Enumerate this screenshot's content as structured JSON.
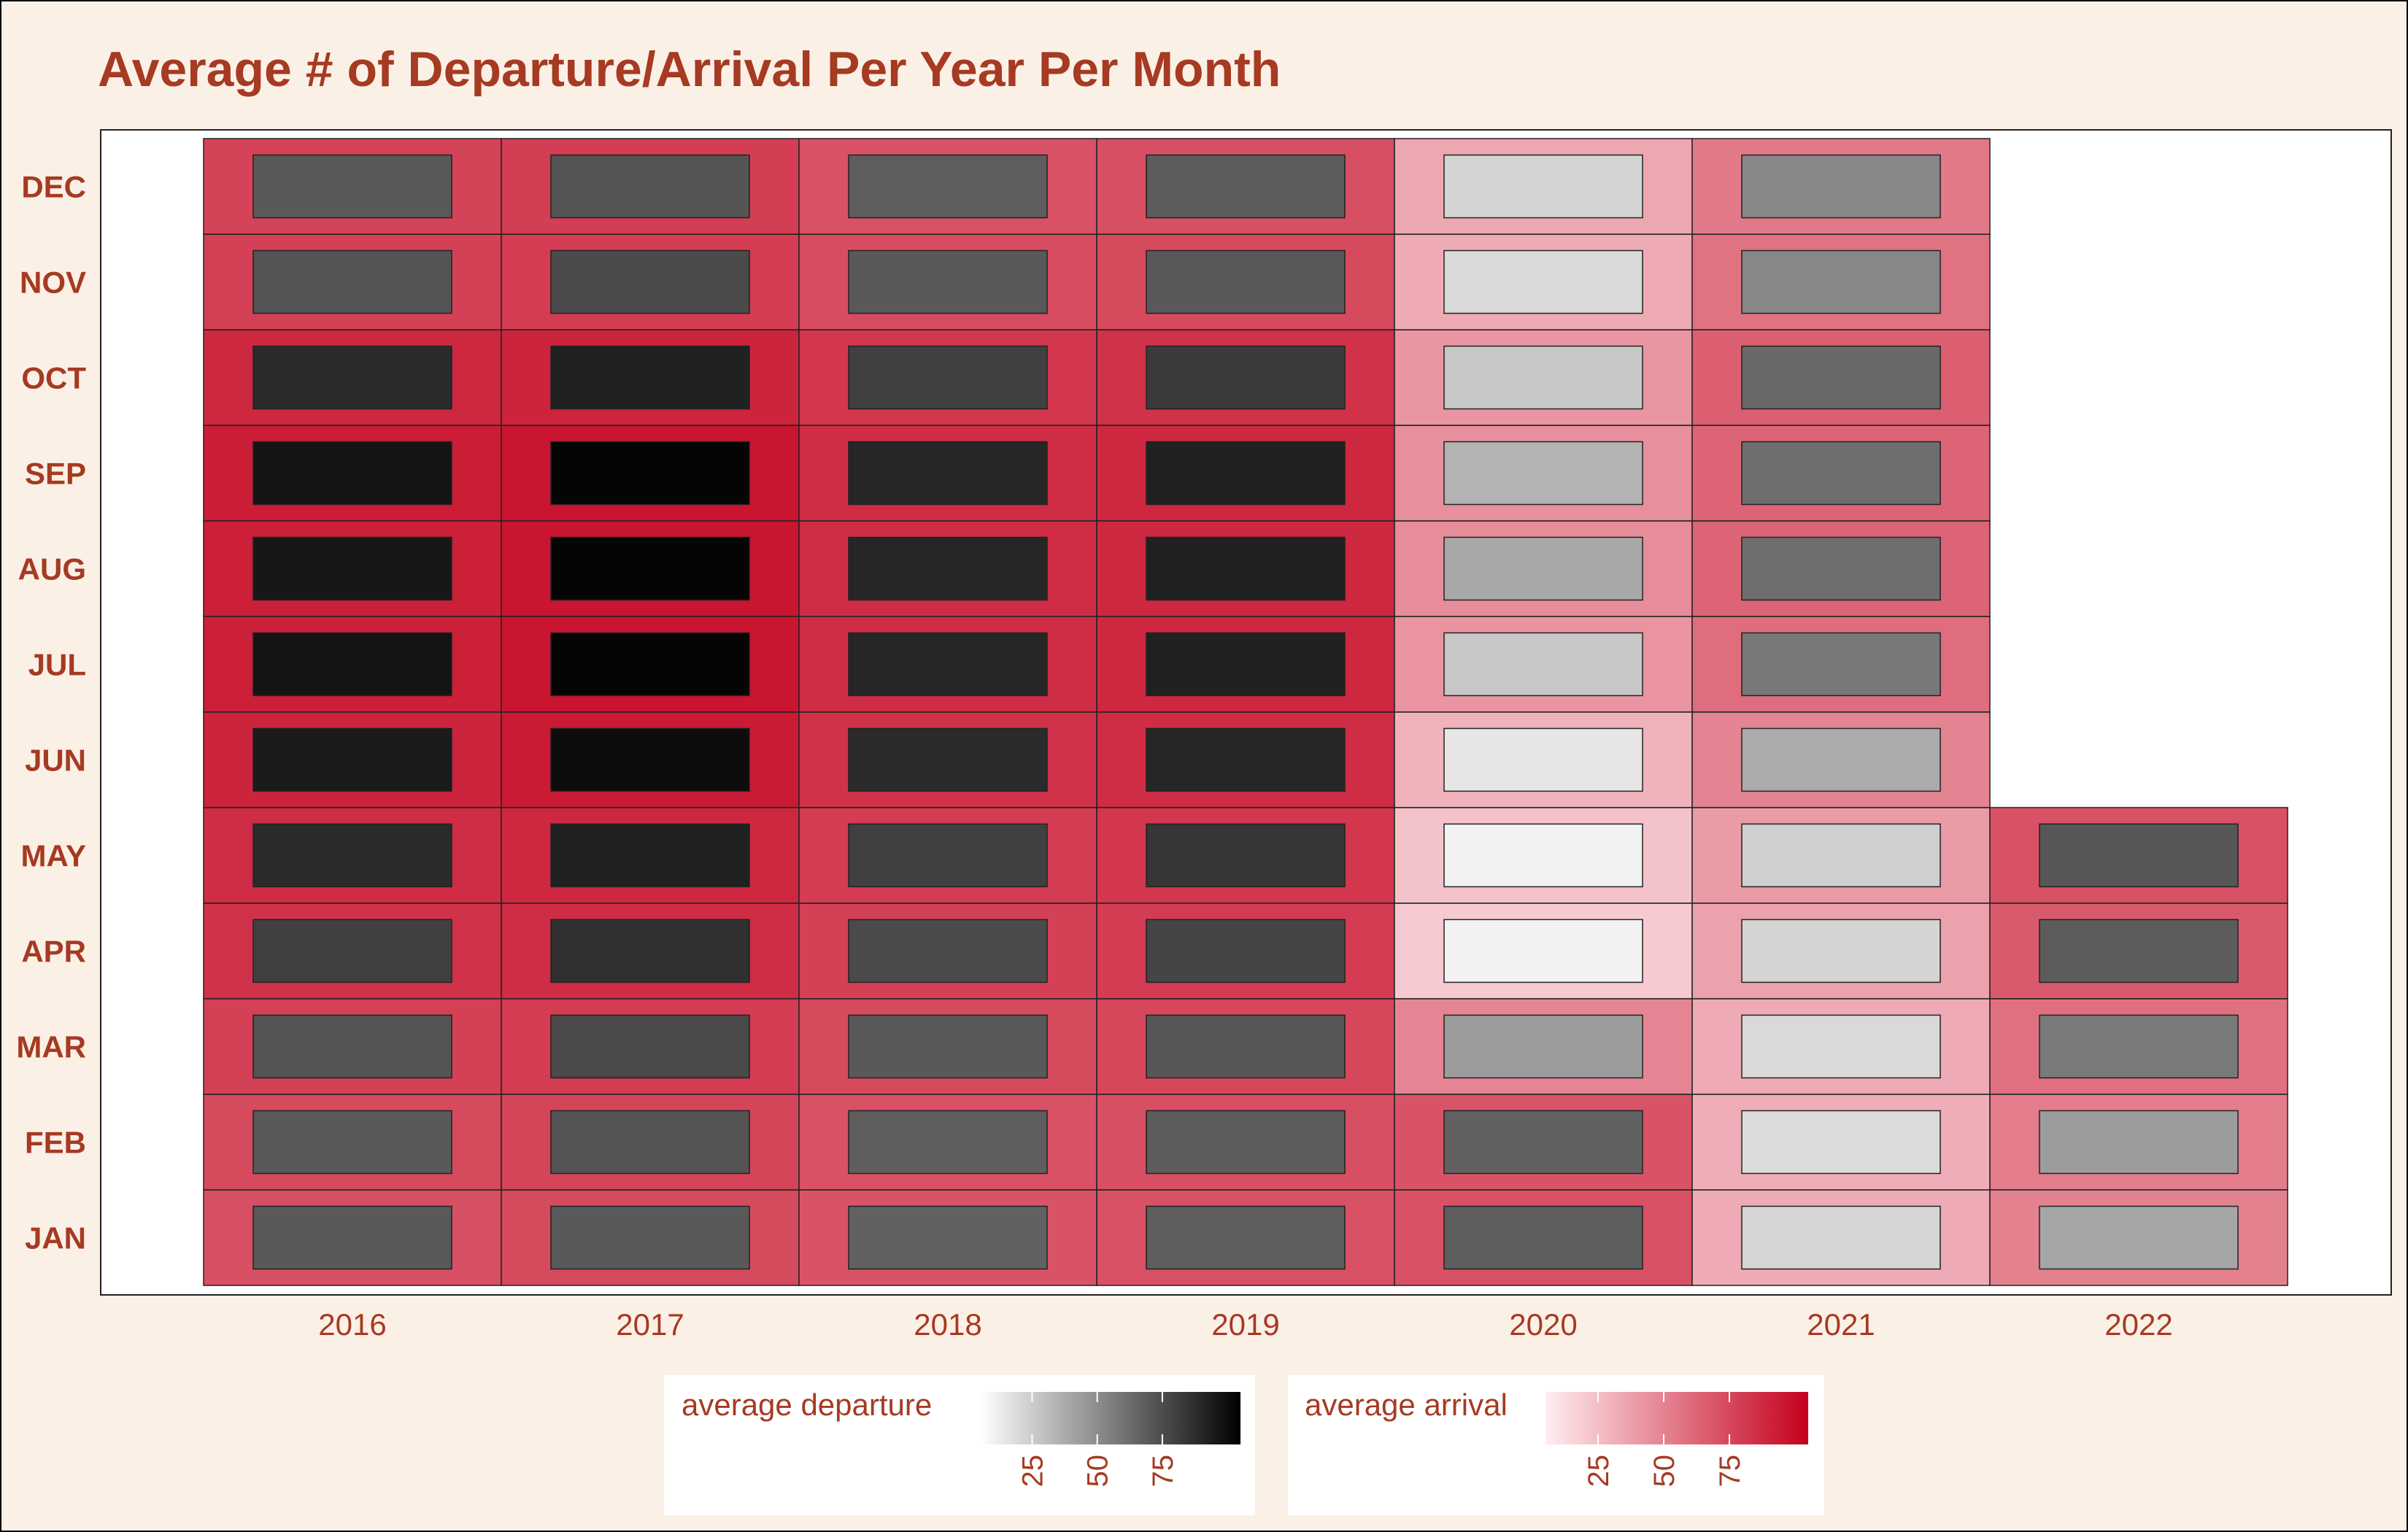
{
  "chart_data": {
    "type": "heatmap",
    "title": "Average # of Departure/Arrival Per Year Per Month",
    "years": [
      "2016",
      "2017",
      "2018",
      "2019",
      "2020",
      "2021",
      "2022"
    ],
    "months": [
      "JAN",
      "FEB",
      "MAR",
      "APR",
      "MAY",
      "JUN",
      "JUL",
      "AUG",
      "SEP",
      "OCT",
      "NOV",
      "DEC"
    ],
    "series": [
      {
        "name": "average departure",
        "encoding": "inner rectangle fill (white to black)",
        "values": {
          "2016": [
            70,
            70,
            72,
            80,
            88,
            95,
            97,
            96,
            97,
            88,
            72,
            70
          ],
          "2017": [
            70,
            72,
            76,
            86,
            92,
            100,
            103,
            103,
            103,
            92,
            76,
            72
          ],
          "2018": [
            67,
            68,
            70,
            76,
            80,
            88,
            90,
            90,
            90,
            80,
            70,
            68
          ],
          "2019": [
            68,
            69,
            71,
            78,
            84,
            90,
            92,
            92,
            92,
            82,
            70,
            69
          ],
          "2020": [
            68,
            67,
            44,
            10,
            10,
            15,
            27,
            39,
            35,
            27,
            20,
            22
          ],
          "2021": [
            21,
            19,
            20,
            22,
            24,
            38,
            58,
            62,
            62,
            64,
            52,
            52
          ],
          "2022": [
            40,
            44,
            57,
            69,
            71,
            null,
            null,
            null,
            null,
            null,
            null,
            null
          ]
        }
      },
      {
        "name": "average arrival",
        "encoding": "outer tile fill (white to red)",
        "values": {
          "2016": [
            72,
            74,
            78,
            84,
            86,
            90,
            92,
            92,
            93,
            88,
            78,
            77
          ],
          "2017": [
            74,
            76,
            80,
            86,
            88,
            94,
            96,
            96,
            96,
            90,
            80,
            79
          ],
          "2018": [
            70,
            71,
            74,
            78,
            80,
            84,
            86,
            86,
            86,
            82,
            73,
            71
          ],
          "2019": [
            71,
            72,
            75,
            80,
            82,
            86,
            88,
            88,
            88,
            84,
            74,
            72
          ],
          "2020": [
            71,
            70,
            49,
            20,
            23,
            30,
            43,
            46,
            45,
            42,
            33,
            35
          ],
          "2021": [
            33,
            32,
            33,
            37,
            40,
            50,
            59,
            63,
            63,
            65,
            57,
            54
          ],
          "2022": [
            51,
            53,
            58,
            67,
            71,
            null,
            null,
            null,
            null,
            null,
            null,
            null
          ]
        }
      }
    ],
    "legend": {
      "placement": "bottom",
      "items": [
        {
          "title": "average departure",
          "low_color": "#ffffff",
          "high_color": "#000000",
          "ticks": [
            "25",
            "50",
            "75"
          ]
        },
        {
          "title": "average arrival",
          "low_color": "#ffeef0",
          "high_color": "#c4001d",
          "ticks": [
            "25",
            "50",
            "75"
          ]
        }
      ]
    },
    "value_range": [
      5,
      105
    ],
    "grid": false
  },
  "colors": {
    "text": "#a63a22",
    "background": "#fbf0e6",
    "panel": "#ffffff",
    "arrival_low": "#ffeef0",
    "arrival_high": "#c4001d",
    "departure_low": "#ffffff",
    "departure_high": "#000000"
  }
}
